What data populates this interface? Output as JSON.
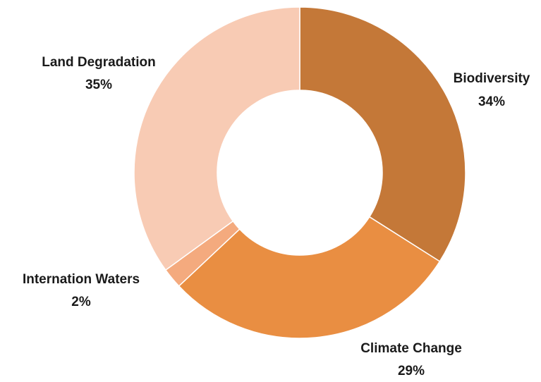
{
  "chart_data": {
    "type": "pie",
    "variant": "donut",
    "title": "",
    "slices": [
      {
        "label": "Biodiversity",
        "percent_label": "34%",
        "value": 34,
        "color": "#C47838"
      },
      {
        "label": "Climate Change",
        "percent_label": "29%",
        "value": 29,
        "color": "#E98E42"
      },
      {
        "label": "Internation Waters",
        "percent_label": "2%",
        "value": 2,
        "color": "#F4AA7E"
      },
      {
        "label": "Land Degradation",
        "percent_label": "35%",
        "value": 35,
        "color": "#F8CBB4"
      }
    ],
    "legend": "none"
  }
}
